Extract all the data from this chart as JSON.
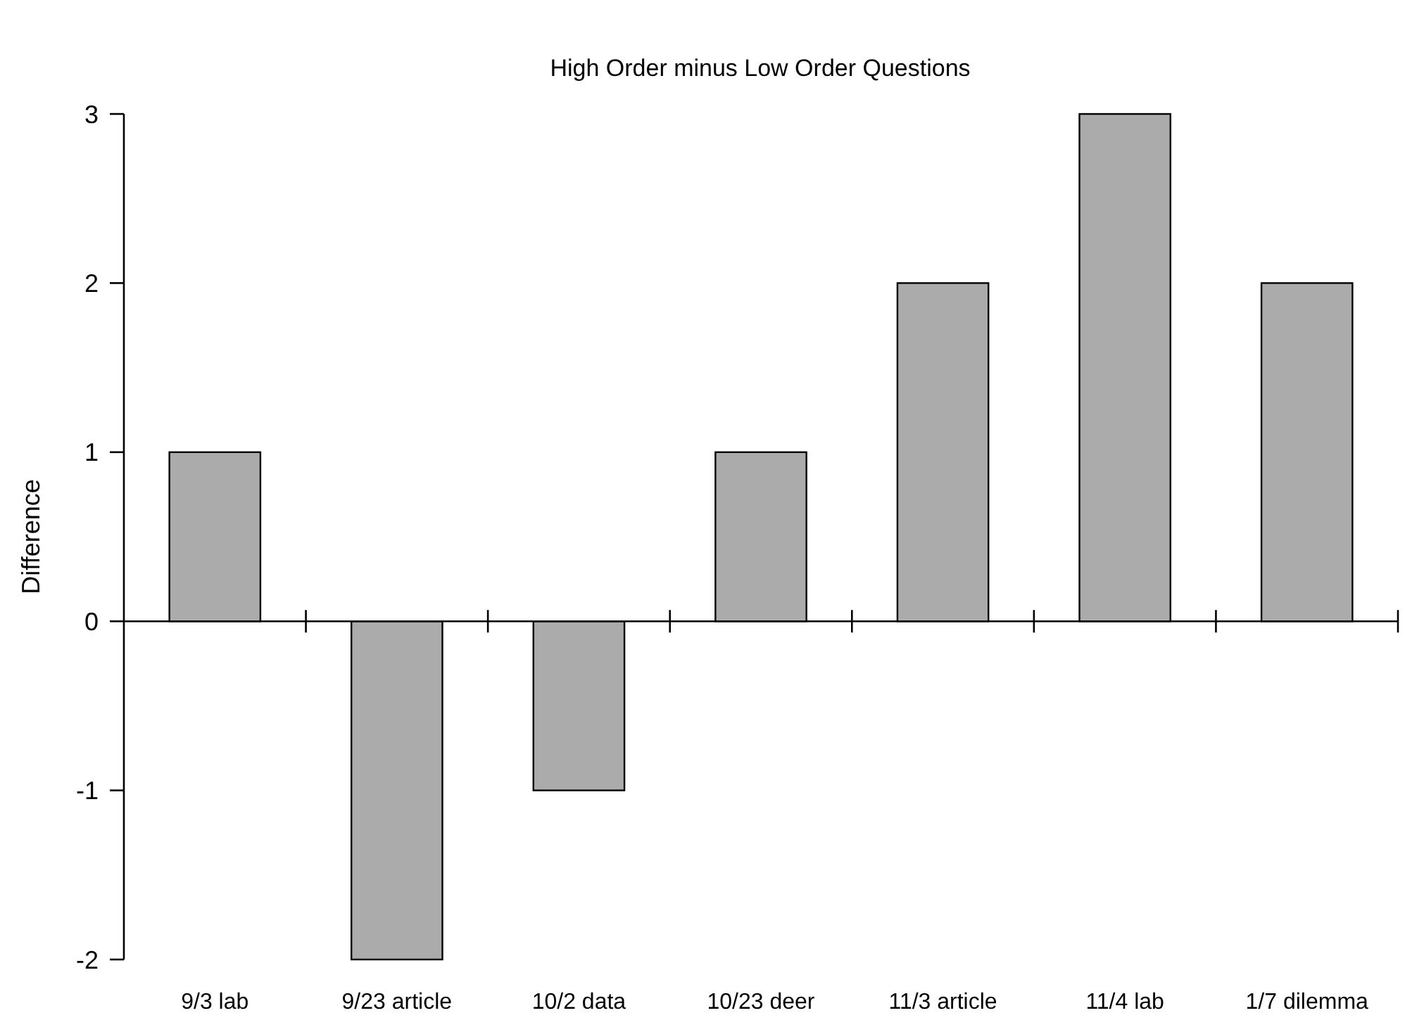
{
  "chart_data": {
    "type": "bar",
    "title": "High Order minus Low Order Questions",
    "ylabel": "Difference",
    "categories": [
      "9/3 lab",
      "9/23 article",
      "10/2 data",
      "10/23 deer",
      "11/3 article",
      "11/4 lab",
      "1/7 dilemma"
    ],
    "values": [
      1,
      -2,
      -1,
      1,
      2,
      3,
      2
    ],
    "color": "#ababab",
    "ylim": [
      -2,
      3
    ],
    "yticks": [
      -2,
      -1,
      0,
      1,
      2,
      3
    ]
  }
}
